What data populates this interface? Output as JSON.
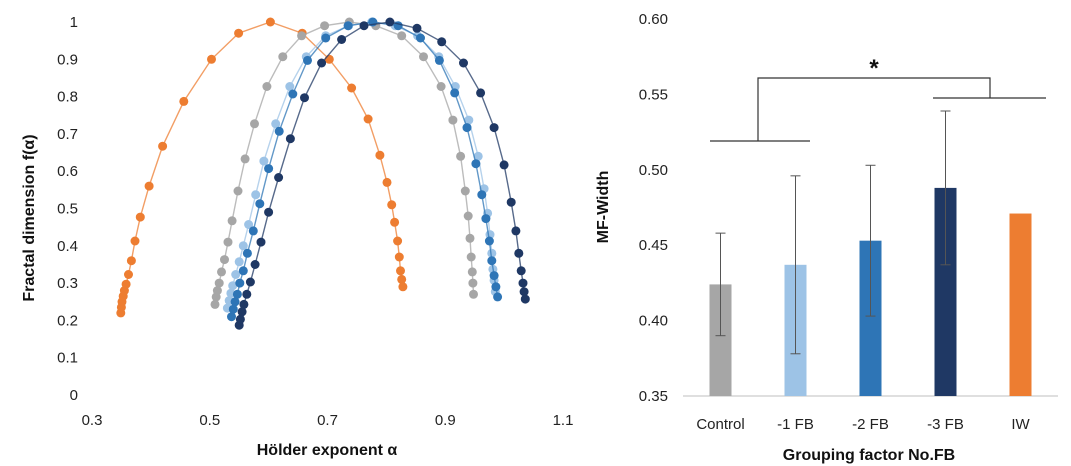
{
  "chart_data": [
    {
      "type": "scatter",
      "title": "",
      "xlabel": "Hölder exponent α",
      "ylabel": "Fractal dimension f(α)",
      "xlim": [
        0.3,
        1.1
      ],
      "ylim": [
        0,
        1
      ],
      "xticks": [
        "0.3",
        "0.5",
        "0.7",
        "0.9",
        "1.1"
      ],
      "yticks": [
        "0",
        "0.1",
        "0.2",
        "0.3",
        "0.4",
        "0.5",
        "0.6",
        "0.7",
        "0.8",
        "0.9",
        "1"
      ],
      "grid": false,
      "series": [
        {
          "color": "#ED7D31",
          "points": [
            [
              0.349,
              0.22
            ],
            [
              0.35,
              0.235
            ],
            [
              0.351,
              0.25
            ],
            [
              0.353,
              0.265
            ],
            [
              0.355,
              0.28
            ],
            [
              0.358,
              0.297
            ],
            [
              0.362,
              0.323
            ],
            [
              0.367,
              0.36
            ],
            [
              0.373,
              0.413
            ],
            [
              0.382,
              0.477
            ],
            [
              0.397,
              0.56
            ],
            [
              0.42,
              0.667
            ],
            [
              0.456,
              0.787
            ],
            [
              0.503,
              0.9
            ],
            [
              0.549,
              0.97
            ],
            [
              0.603,
              1.0
            ],
            [
              0.657,
              0.97
            ],
            [
              0.703,
              0.9
            ],
            [
              0.741,
              0.823
            ],
            [
              0.769,
              0.74
            ],
            [
              0.789,
              0.643
            ],
            [
              0.801,
              0.57
            ],
            [
              0.809,
              0.51
            ],
            [
              0.814,
              0.463
            ],
            [
              0.819,
              0.413
            ],
            [
              0.822,
              0.37
            ],
            [
              0.824,
              0.333
            ],
            [
              0.826,
              0.31
            ],
            [
              0.828,
              0.29
            ]
          ]
        },
        {
          "color": "#A6A6A6",
          "points": [
            [
              0.509,
              0.243
            ],
            [
              0.511,
              0.263
            ],
            [
              0.513,
              0.28
            ],
            [
              0.516,
              0.3
            ],
            [
              0.52,
              0.33
            ],
            [
              0.525,
              0.363
            ],
            [
              0.531,
              0.41
            ],
            [
              0.538,
              0.467
            ],
            [
              0.548,
              0.547
            ],
            [
              0.56,
              0.633
            ],
            [
              0.576,
              0.727
            ],
            [
              0.597,
              0.827
            ],
            [
              0.624,
              0.907
            ],
            [
              0.656,
              0.963
            ],
            [
              0.695,
              0.99
            ],
            [
              0.737,
              1.0
            ],
            [
              0.782,
              0.99
            ],
            [
              0.826,
              0.963
            ],
            [
              0.863,
              0.907
            ],
            [
              0.893,
              0.827
            ],
            [
              0.913,
              0.737
            ],
            [
              0.926,
              0.64
            ],
            [
              0.934,
              0.547
            ],
            [
              0.939,
              0.48
            ],
            [
              0.942,
              0.42
            ],
            [
              0.944,
              0.37
            ],
            [
              0.946,
              0.33
            ],
            [
              0.947,
              0.3
            ],
            [
              0.948,
              0.27
            ]
          ]
        },
        {
          "color": "#9DC3E6",
          "points": [
            [
              0.53,
              0.233
            ],
            [
              0.533,
              0.253
            ],
            [
              0.536,
              0.273
            ],
            [
              0.539,
              0.293
            ],
            [
              0.544,
              0.323
            ],
            [
              0.55,
              0.357
            ],
            [
              0.557,
              0.4
            ],
            [
              0.566,
              0.457
            ],
            [
              0.578,
              0.537
            ],
            [
              0.592,
              0.627
            ],
            [
              0.612,
              0.727
            ],
            [
              0.636,
              0.827
            ],
            [
              0.664,
              0.907
            ],
            [
              0.697,
              0.963
            ],
            [
              0.736,
              0.99
            ],
            [
              0.775,
              1.0
            ],
            [
              0.815,
              0.99
            ],
            [
              0.853,
              0.963
            ],
            [
              0.889,
              0.907
            ],
            [
              0.917,
              0.827
            ],
            [
              0.94,
              0.737
            ],
            [
              0.956,
              0.64
            ],
            [
              0.966,
              0.553
            ],
            [
              0.972,
              0.487
            ],
            [
              0.976,
              0.43
            ],
            [
              0.979,
              0.38
            ],
            [
              0.981,
              0.337
            ],
            [
              0.983,
              0.307
            ],
            [
              0.985,
              0.277
            ]
          ]
        },
        {
          "color": "#2E75B6",
          "points": [
            [
              0.537,
              0.21
            ],
            [
              0.54,
              0.23
            ],
            [
              0.543,
              0.25
            ],
            [
              0.547,
              0.27
            ],
            [
              0.551,
              0.3
            ],
            [
              0.557,
              0.333
            ],
            [
              0.564,
              0.38
            ],
            [
              0.574,
              0.44
            ],
            [
              0.585,
              0.513
            ],
            [
              0.6,
              0.607
            ],
            [
              0.618,
              0.707
            ],
            [
              0.641,
              0.807
            ],
            [
              0.666,
              0.897
            ],
            [
              0.697,
              0.957
            ],
            [
              0.735,
              0.99
            ],
            [
              0.777,
              1.0
            ],
            [
              0.82,
              0.99
            ],
            [
              0.858,
              0.957
            ],
            [
              0.89,
              0.897
            ],
            [
              0.916,
              0.81
            ],
            [
              0.937,
              0.717
            ],
            [
              0.952,
              0.62
            ],
            [
              0.962,
              0.537
            ],
            [
              0.969,
              0.473
            ],
            [
              0.975,
              0.413
            ],
            [
              0.979,
              0.36
            ],
            [
              0.983,
              0.32
            ],
            [
              0.986,
              0.29
            ],
            [
              0.989,
              0.263
            ]
          ]
        },
        {
          "color": "#1F3864",
          "points": [
            [
              0.55,
              0.187
            ],
            [
              0.552,
              0.203
            ],
            [
              0.555,
              0.223
            ],
            [
              0.558,
              0.243
            ],
            [
              0.563,
              0.27
            ],
            [
              0.569,
              0.303
            ],
            [
              0.577,
              0.35
            ],
            [
              0.587,
              0.41
            ],
            [
              0.6,
              0.49
            ],
            [
              0.617,
              0.583
            ],
            [
              0.637,
              0.687
            ],
            [
              0.661,
              0.797
            ],
            [
              0.69,
              0.89
            ],
            [
              0.724,
              0.953
            ],
            [
              0.762,
              0.99
            ],
            [
              0.806,
              1.0
            ],
            [
              0.852,
              0.983
            ],
            [
              0.894,
              0.947
            ],
            [
              0.931,
              0.89
            ],
            [
              0.96,
              0.81
            ],
            [
              0.983,
              0.717
            ],
            [
              1.0,
              0.617
            ],
            [
              1.012,
              0.517
            ],
            [
              1.02,
              0.44
            ],
            [
              1.025,
              0.38
            ],
            [
              1.029,
              0.333
            ],
            [
              1.032,
              0.3
            ],
            [
              1.034,
              0.277
            ],
            [
              1.036,
              0.257
            ]
          ]
        }
      ]
    },
    {
      "type": "bar",
      "title": "",
      "xlabel": "Grouping factor No.FB",
      "ylabel": "MF-Width",
      "categories": [
        "Control",
        "-1 FB",
        "-2 FB",
        "-3 FB",
        "IW"
      ],
      "values": [
        0.424,
        0.437,
        0.453,
        0.488,
        0.471
      ],
      "error": [
        0.034,
        0.059,
        0.05,
        0.051,
        null
      ],
      "colors": [
        "#A6A6A6",
        "#9DC3E6",
        "#2E75B6",
        "#1F3864",
        "#ED7D31"
      ],
      "ylim": [
        0.35,
        0.6
      ],
      "yticks": [
        "0.35",
        "0.40",
        "0.45",
        "0.50",
        "0.55",
        "0.60"
      ],
      "grid": false,
      "significance": {
        "label": "*",
        "left_group": [
          "Control",
          "-1 FB"
        ],
        "right_group": [
          "-3 FB",
          "IW"
        ]
      }
    }
  ]
}
